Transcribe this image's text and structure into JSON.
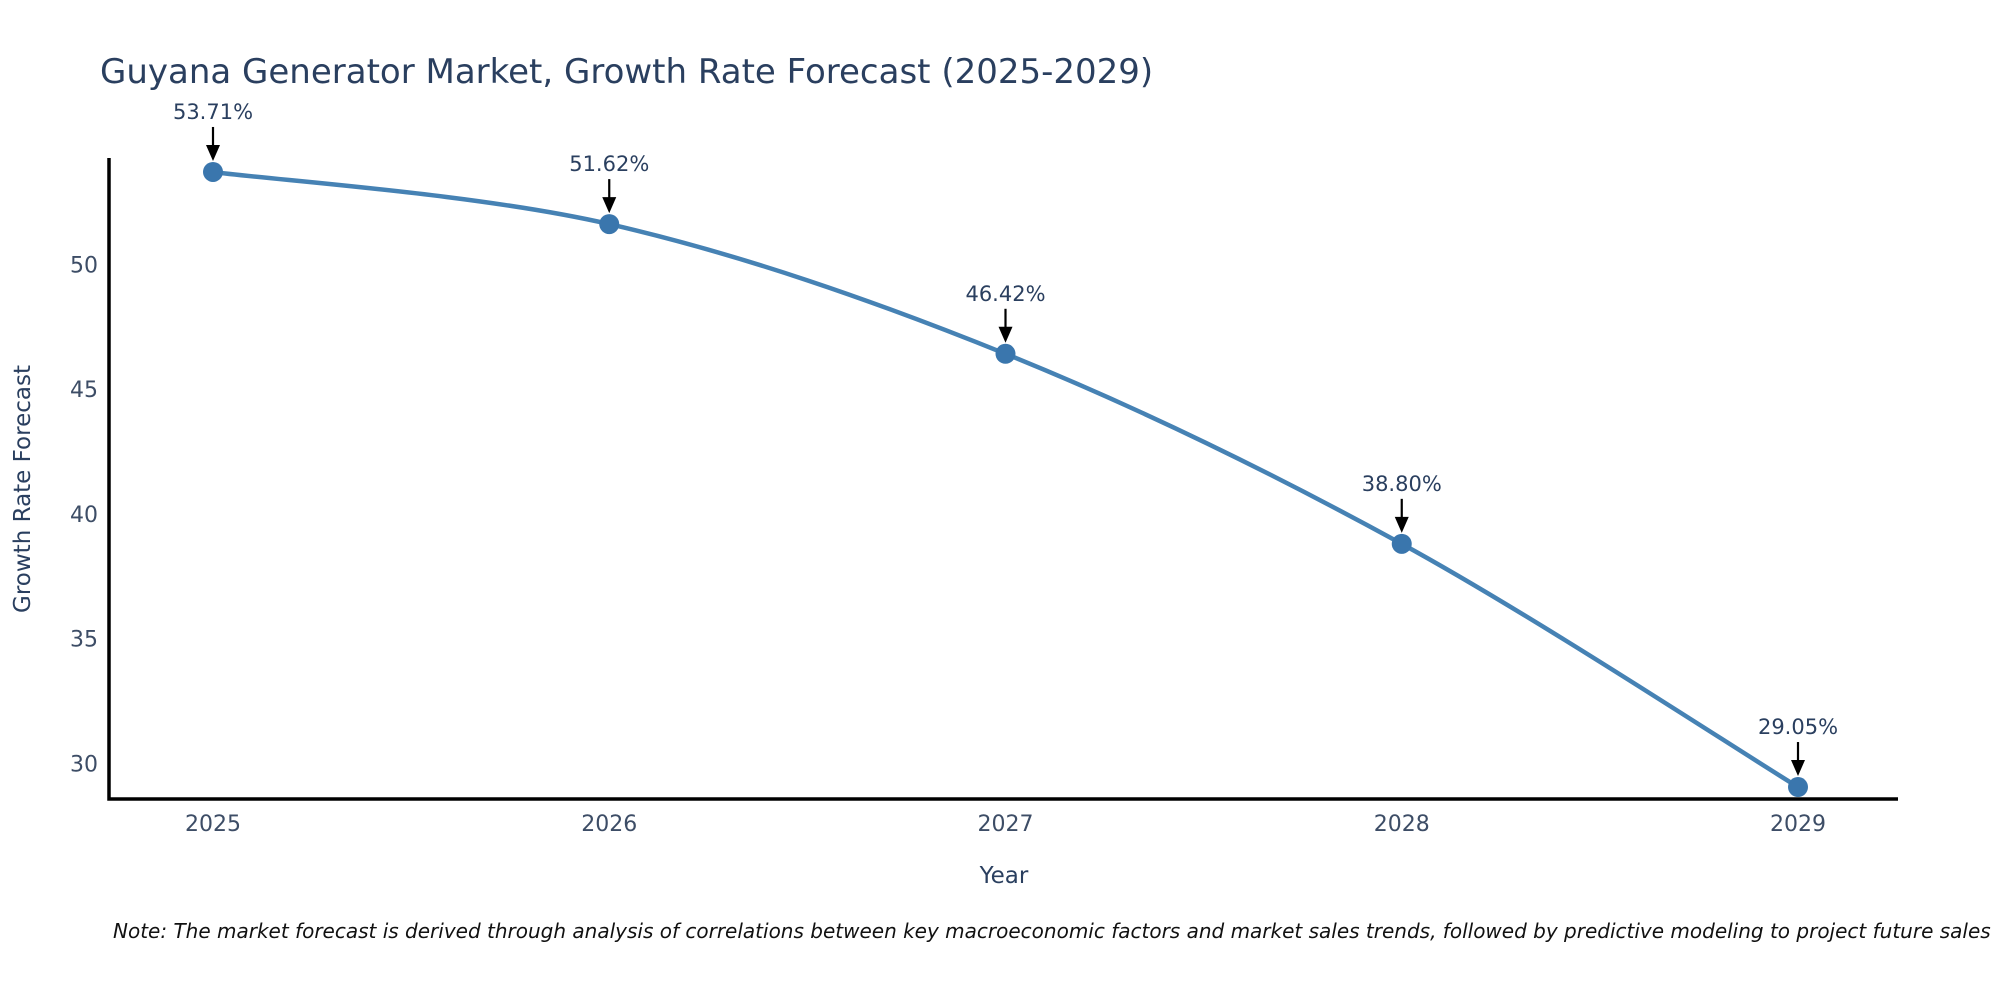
{
  "chart_data": {
    "type": "line",
    "title": "Guyana Generator Market, Growth Rate Forecast (2025-2029)",
    "xlabel": "Year",
    "ylabel": "Growth Rate Forecast",
    "x": [
      2025,
      2026,
      2027,
      2028,
      2029
    ],
    "series": [
      {
        "name": "Growth Rate Forecast",
        "values": [
          53.71,
          51.62,
          46.42,
          38.8,
          29.05
        ]
      }
    ],
    "point_labels": [
      "53.71%",
      "51.62%",
      "46.42%",
      "38.80%",
      "29.05%"
    ],
    "yticks": [
      30,
      35,
      40,
      45,
      50
    ],
    "ylim": [
      28.57,
      54.27
    ],
    "grid": false,
    "legend_position": "none",
    "line_shape": "spline",
    "line_color": "#4682b4",
    "marker_color": "#3a76ad",
    "axis_color": "#000000",
    "annotation_arrow_color": "#000000",
    "title_color": "#2a3f5f",
    "note": "Note: The market forecast is derived through analysis of correlations between key macroeconomic factors and market sales trends, followed by predictive modeling to project future sales"
  }
}
